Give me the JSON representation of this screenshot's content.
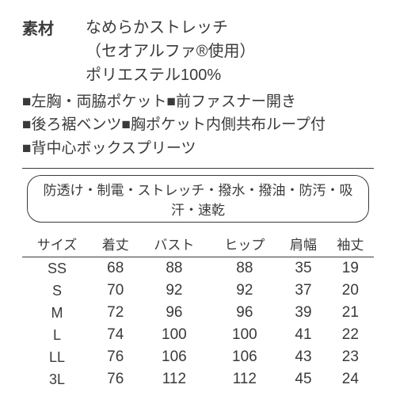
{
  "material": {
    "label": "素材",
    "lines": [
      "なめらかストレッチ",
      "（セオアルファ®使用）",
      "ポリエステル100%"
    ]
  },
  "features": [
    "■左胸・両脇ポケット■前ファスナー開き",
    "■後ろ裾ベンツ■胸ポケット内側共布ループ付",
    "■背中心ボックスプリーツ"
  ],
  "properties_pill": "防透け・制電・ストレッチ・撥水・撥油・防汚・吸汗・速乾",
  "size_table": {
    "columns": [
      "サイズ",
      "着丈",
      "バスト",
      "ヒップ",
      "肩幅",
      "袖丈"
    ],
    "rows": [
      [
        "SS",
        "68",
        "88",
        "88",
        "35",
        "19"
      ],
      [
        "S",
        "70",
        "92",
        "92",
        "37",
        "20"
      ],
      [
        "M",
        "72",
        "96",
        "96",
        "39",
        "21"
      ],
      [
        "L",
        "74",
        "100",
        "100",
        "41",
        "22"
      ],
      [
        "LL",
        "76",
        "106",
        "106",
        "43",
        "23"
      ],
      [
        "3L",
        "76",
        "112",
        "112",
        "45",
        "24"
      ]
    ]
  },
  "colors": {
    "text": "#3a3a3a",
    "background": "#ffffff",
    "border": "#3a3a3a"
  }
}
